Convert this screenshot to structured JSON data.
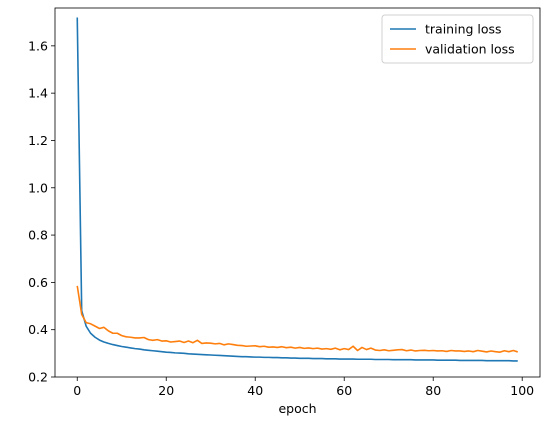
{
  "chart_data": {
    "type": "line",
    "title": "",
    "xlabel": "epoch",
    "ylabel": "",
    "xlim": [
      -5,
      104
    ],
    "ylim": [
      0.2,
      1.76
    ],
    "xticks": [
      0,
      20,
      40,
      60,
      80,
      100
    ],
    "yticks": [
      0.2,
      0.4,
      0.6,
      0.8,
      1.0,
      1.2,
      1.4,
      1.6
    ],
    "ytick_labels": [
      "0.2",
      "0.4",
      "0.6",
      "0.8",
      "1.0",
      "1.2",
      "1.4",
      "1.6"
    ],
    "grid": false,
    "legend_position": "top-right",
    "series": [
      {
        "name": "training loss",
        "color": "#1f77b4",
        "x": [
          0,
          1,
          2,
          3,
          4,
          5,
          6,
          7,
          8,
          9,
          10,
          11,
          12,
          13,
          14,
          15,
          16,
          17,
          18,
          19,
          20,
          21,
          22,
          23,
          24,
          25,
          26,
          27,
          28,
          29,
          30,
          31,
          32,
          33,
          34,
          35,
          36,
          37,
          38,
          39,
          40,
          41,
          42,
          43,
          44,
          45,
          46,
          47,
          48,
          49,
          50,
          51,
          52,
          53,
          54,
          55,
          56,
          57,
          58,
          59,
          60,
          61,
          62,
          63,
          64,
          65,
          66,
          67,
          68,
          69,
          70,
          71,
          72,
          73,
          74,
          75,
          76,
          77,
          78,
          79,
          80,
          81,
          82,
          83,
          84,
          85,
          86,
          87,
          88,
          89,
          90,
          91,
          92,
          93,
          94,
          95,
          96,
          97,
          98,
          99
        ],
        "values": [
          1.72,
          0.48,
          0.415,
          0.385,
          0.368,
          0.356,
          0.348,
          0.342,
          0.337,
          0.333,
          0.329,
          0.326,
          0.323,
          0.32,
          0.318,
          0.315,
          0.313,
          0.311,
          0.309,
          0.307,
          0.305,
          0.304,
          0.302,
          0.301,
          0.3,
          0.298,
          0.297,
          0.296,
          0.295,
          0.294,
          0.293,
          0.292,
          0.291,
          0.29,
          0.289,
          0.288,
          0.287,
          0.286,
          0.286,
          0.285,
          0.284,
          0.284,
          0.283,
          0.283,
          0.282,
          0.282,
          0.281,
          0.281,
          0.28,
          0.28,
          0.279,
          0.279,
          0.279,
          0.278,
          0.278,
          0.278,
          0.277,
          0.277,
          0.277,
          0.276,
          0.276,
          0.276,
          0.276,
          0.275,
          0.275,
          0.275,
          0.275,
          0.274,
          0.274,
          0.274,
          0.274,
          0.273,
          0.273,
          0.273,
          0.273,
          0.273,
          0.272,
          0.272,
          0.272,
          0.272,
          0.272,
          0.271,
          0.271,
          0.271,
          0.271,
          0.271,
          0.27,
          0.27,
          0.27,
          0.27,
          0.27,
          0.27,
          0.269,
          0.269,
          0.269,
          0.269,
          0.269,
          0.269,
          0.268,
          0.268
        ]
      },
      {
        "name": "validation loss",
        "color": "#ff7f0e",
        "x": [
          0,
          1,
          2,
          3,
          4,
          5,
          6,
          7,
          8,
          9,
          10,
          11,
          12,
          13,
          14,
          15,
          16,
          17,
          18,
          19,
          20,
          21,
          22,
          23,
          24,
          25,
          26,
          27,
          28,
          29,
          30,
          31,
          32,
          33,
          34,
          35,
          36,
          37,
          38,
          39,
          40,
          41,
          42,
          43,
          44,
          45,
          46,
          47,
          48,
          49,
          50,
          51,
          52,
          53,
          54,
          55,
          56,
          57,
          58,
          59,
          60,
          61,
          62,
          63,
          64,
          65,
          66,
          67,
          68,
          69,
          70,
          71,
          72,
          73,
          74,
          75,
          76,
          77,
          78,
          79,
          80,
          81,
          82,
          83,
          84,
          85,
          86,
          87,
          88,
          89,
          90,
          91,
          92,
          93,
          94,
          95,
          96,
          97,
          98,
          99
        ],
        "values": [
          0.585,
          0.465,
          0.43,
          0.425,
          0.415,
          0.405,
          0.41,
          0.395,
          0.385,
          0.385,
          0.375,
          0.37,
          0.368,
          0.365,
          0.365,
          0.367,
          0.358,
          0.355,
          0.358,
          0.352,
          0.353,
          0.348,
          0.35,
          0.352,
          0.346,
          0.352,
          0.345,
          0.355,
          0.342,
          0.344,
          0.343,
          0.34,
          0.342,
          0.336,
          0.34,
          0.337,
          0.334,
          0.333,
          0.33,
          0.331,
          0.332,
          0.328,
          0.33,
          0.326,
          0.327,
          0.325,
          0.328,
          0.324,
          0.326,
          0.322,
          0.325,
          0.321,
          0.323,
          0.32,
          0.322,
          0.318,
          0.32,
          0.317,
          0.322,
          0.315,
          0.32,
          0.316,
          0.33,
          0.312,
          0.325,
          0.316,
          0.322,
          0.314,
          0.312,
          0.315,
          0.311,
          0.313,
          0.315,
          0.316,
          0.311,
          0.314,
          0.31,
          0.312,
          0.313,
          0.311,
          0.312,
          0.31,
          0.311,
          0.308,
          0.312,
          0.31,
          0.31,
          0.308,
          0.31,
          0.307,
          0.312,
          0.309,
          0.306,
          0.31,
          0.307,
          0.305,
          0.311,
          0.307,
          0.312,
          0.306
        ]
      }
    ]
  }
}
